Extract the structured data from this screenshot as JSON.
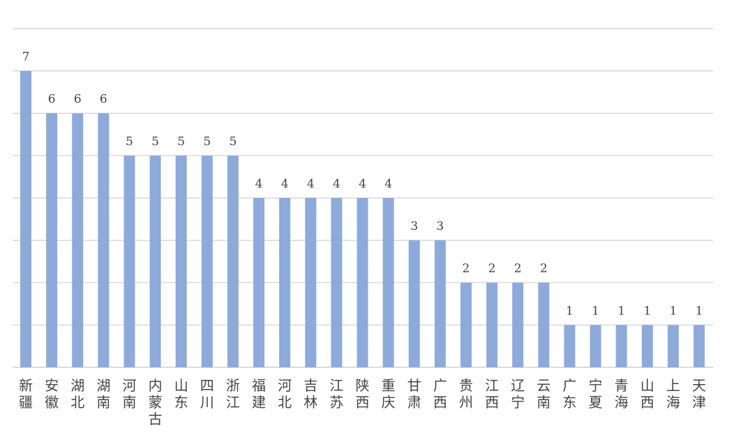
{
  "chart_data": {
    "type": "bar",
    "title": "",
    "xlabel": "",
    "ylabel": "",
    "ylim": [
      0,
      8
    ],
    "grid": true,
    "y_tick_labels_shown": false,
    "bar_color": "#8EAADB",
    "categories": [
      "新疆",
      "安徽",
      "湖北",
      "湖南",
      "河南",
      "内蒙古",
      "山东",
      "四川",
      "浙江",
      "福建",
      "河北",
      "吉林",
      "江苏",
      "陕西",
      "重庆",
      "甘肃",
      "广西",
      "贵州",
      "江西",
      "辽宁",
      "云南",
      "广东",
      "宁夏",
      "青海",
      "山西",
      "上海",
      "天津"
    ],
    "values": [
      7,
      6,
      6,
      6,
      5,
      5,
      5,
      5,
      5,
      4,
      4,
      4,
      4,
      4,
      4,
      3,
      3,
      2,
      2,
      2,
      2,
      1,
      1,
      1,
      1,
      1,
      1
    ]
  }
}
